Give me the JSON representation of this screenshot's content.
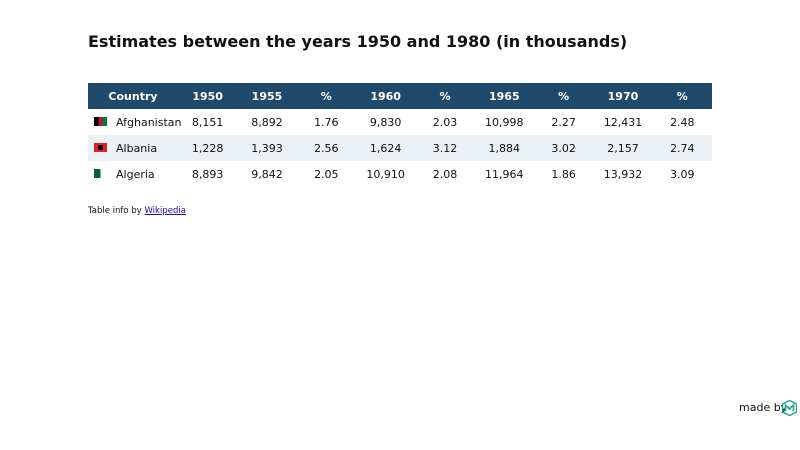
{
  "header": {
    "title": "Estimates between the years 1950 and 1980 (in thousands)"
  },
  "table": {
    "columns": [
      "Country",
      "1950",
      "1955",
      "%",
      "1960",
      "%",
      "1965",
      "%",
      "1970",
      "%"
    ],
    "rows": [
      [
        "Afghanistan",
        "8,151",
        "8,892",
        "1.76",
        "9,830",
        "2.03",
        "10,998",
        "2.27",
        "12,431",
        "2.48"
      ],
      [
        "Albania",
        "1,228",
        "1,393",
        "2.56",
        "1,624",
        "3.12",
        "1,884",
        "3.02",
        "2,157",
        "2.74"
      ],
      [
        "Algeria",
        "8,893",
        "9,842",
        "2.05",
        "10,910",
        "2.08",
        "11,964",
        "1.86",
        "13,932",
        "3.09"
      ]
    ]
  },
  "footer": {
    "source_prefix": "Table info by",
    "source_link": "Wikipedia",
    "credit": "made by"
  }
}
